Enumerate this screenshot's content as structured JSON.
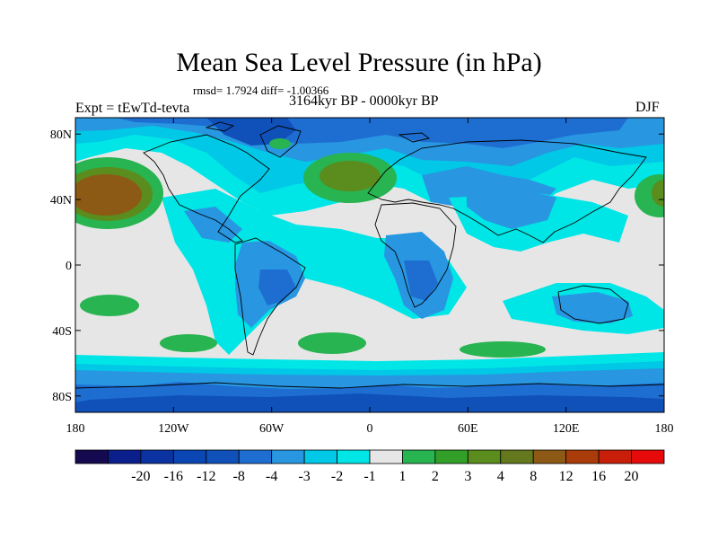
{
  "title": "Mean Sea Level Pressure (in hPa)",
  "stats": "rmsd= 1.7924 diff= -1.00366",
  "experiment": "Expt = tEwTd-tevta",
  "period": "3164kyr BP - 0000kyr BP",
  "season": "DJF",
  "axes": {
    "lon_ticks": [
      "180",
      "120W",
      "60W",
      "0",
      "60E",
      "120E",
      "180"
    ],
    "lat_ticks": [
      "80N",
      "40N",
      "0",
      "40S",
      "80S"
    ]
  },
  "colorbar": {
    "labels": [
      "-20",
      "-16",
      "-12",
      "-8",
      "-4",
      "-3",
      "-2",
      "-1",
      "1",
      "2",
      "3",
      "4",
      "8",
      "12",
      "16",
      "20"
    ],
    "colors": [
      "#150a50",
      "#0a1e8c",
      "#0a32a0",
      "#0a46b4",
      "#0f50b9",
      "#1e6ed2",
      "#2896e1",
      "#00c8e6",
      "#00e6e6",
      "#e6e6e6",
      "#28b450",
      "#32a028",
      "#5a8c1e",
      "#64781e",
      "#8c5a14",
      "#aa3c0a",
      "#c81e0a",
      "#e60a0a"
    ]
  },
  "palette": {
    "neutral": "#e6e6e6",
    "cyan": "#00e6e6",
    "aqua": "#00c8e6",
    "blue_light": "#2896e1",
    "blue_mid": "#1e6ed2",
    "blue_dark": "#0f50b9",
    "green": "#28b450",
    "olive": "#5a8c1e",
    "brown": "#8c5a14"
  }
}
